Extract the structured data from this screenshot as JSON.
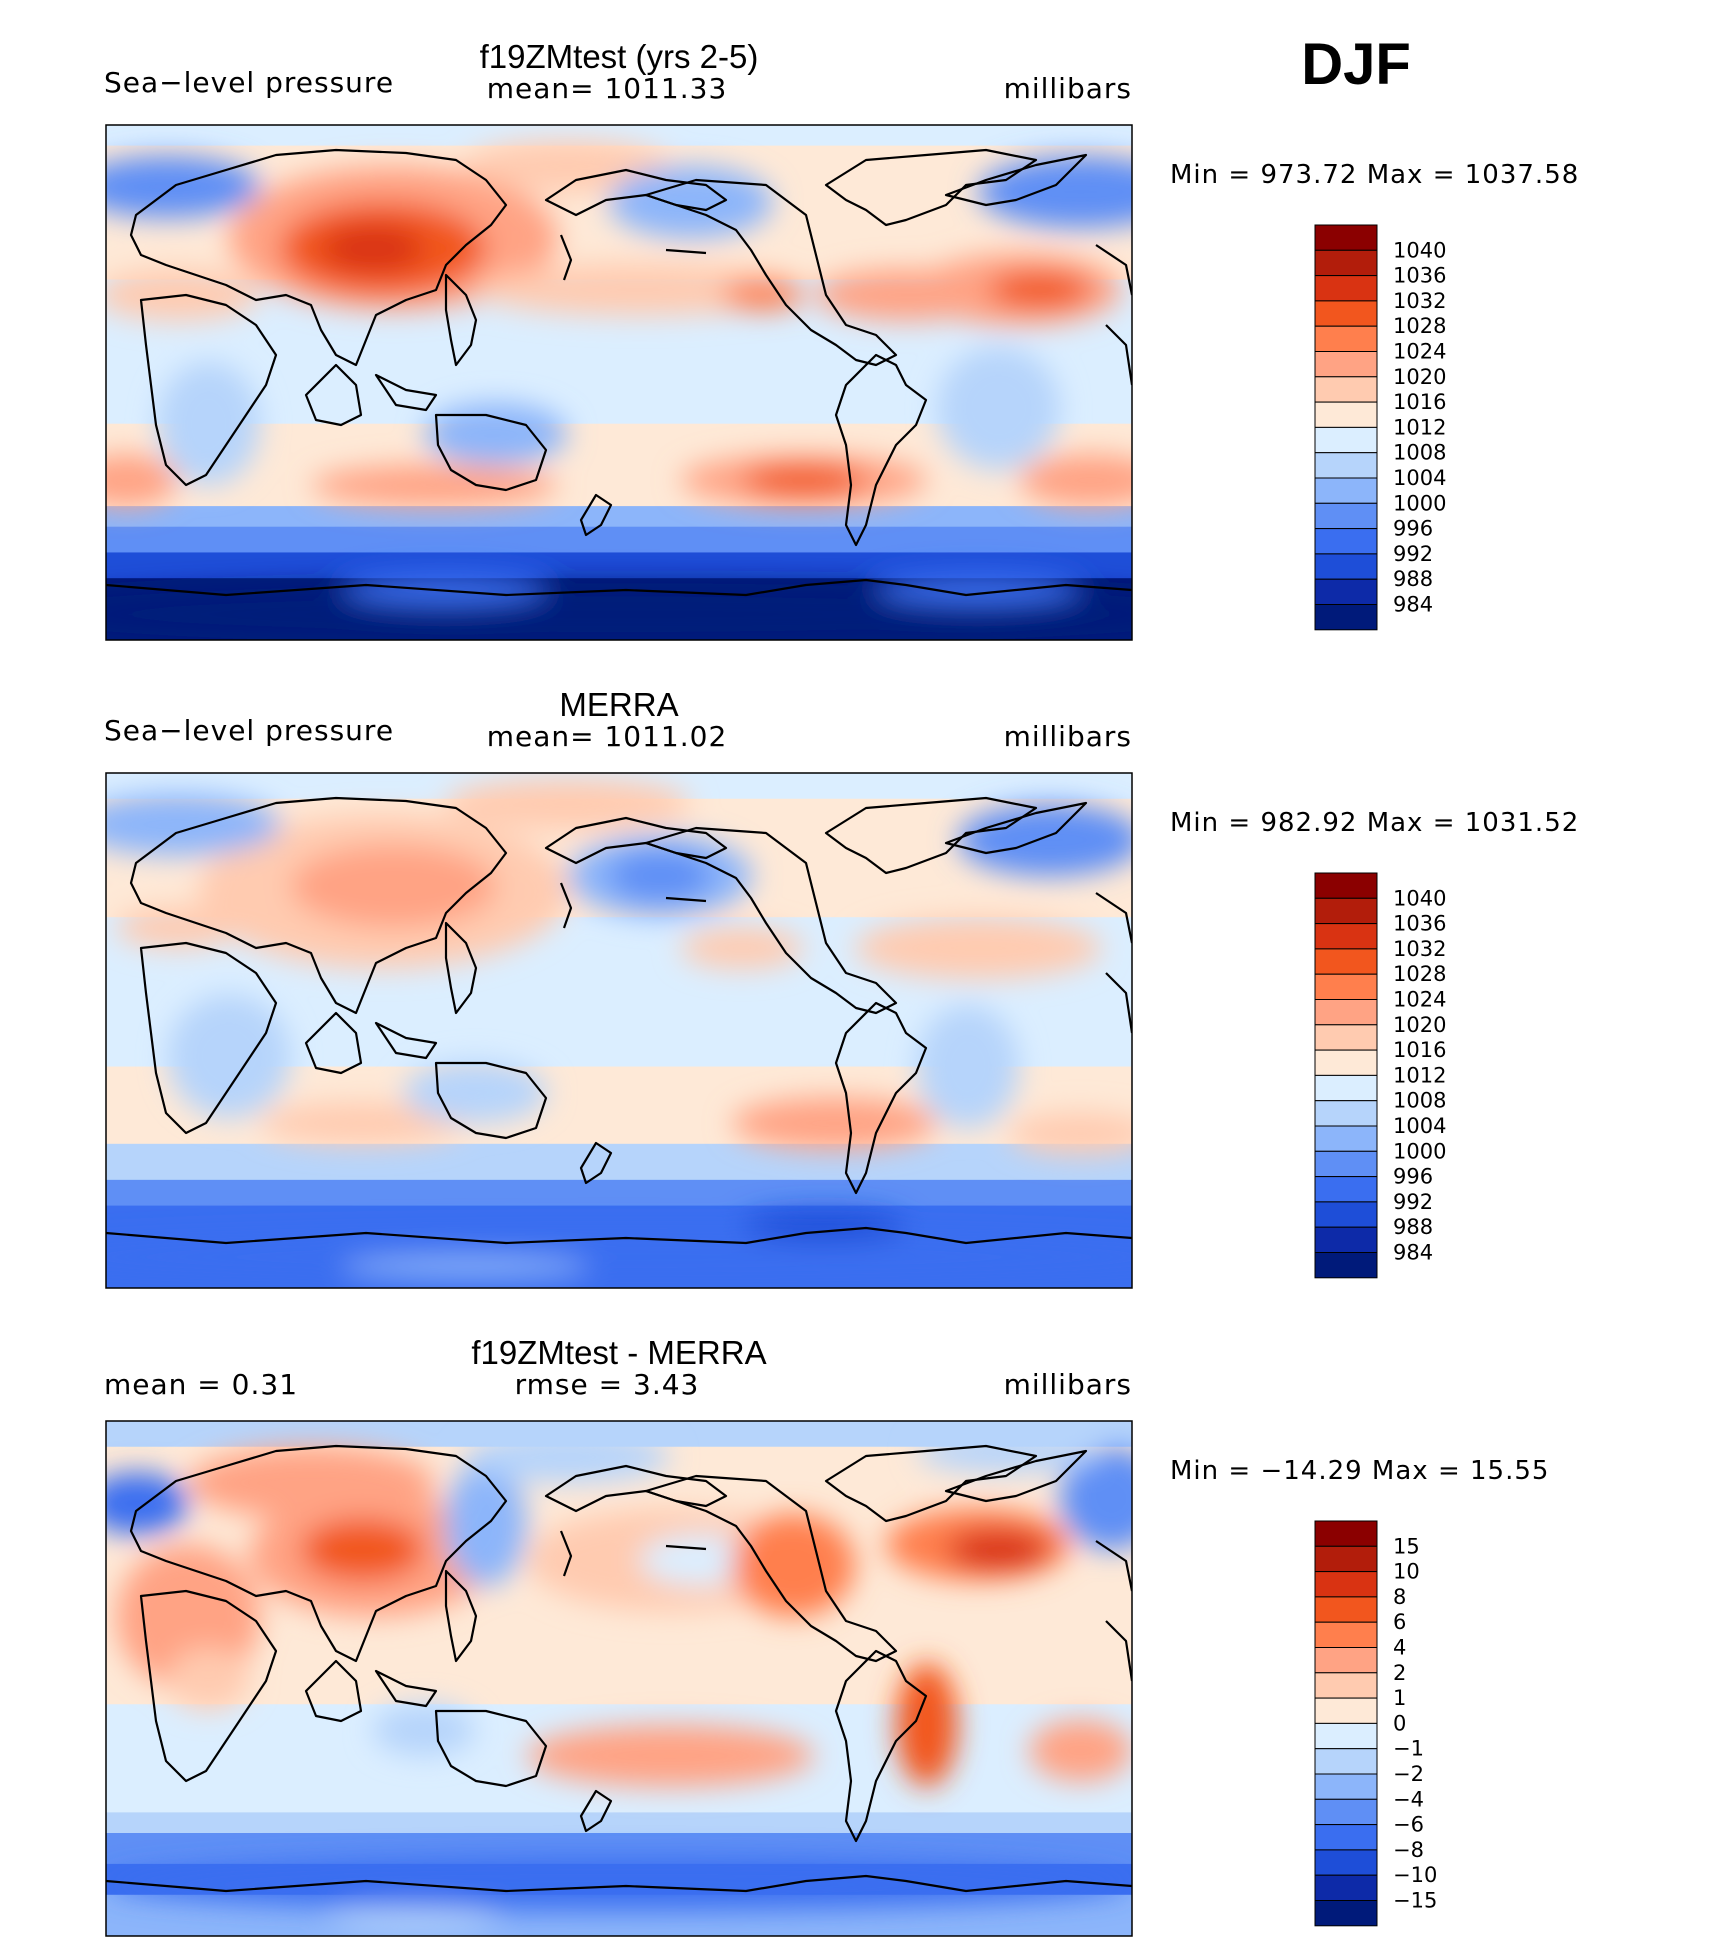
{
  "season": "DJF",
  "chart_data": [
    {
      "type": "contour-map",
      "title": "f19ZMtest (yrs 2-5)",
      "left_label": "Sea−level pressure",
      "center_label": "mean=  1011.33",
      "units": "millibars",
      "stats": "Min  =  973.72  Max  =  1037.58",
      "min": 973.72,
      "max": 1037.58,
      "mean": 1011.33,
      "levels": [
        "1040",
        "1036",
        "1032",
        "1028",
        "1024",
        "1020",
        "1016",
        "1012",
        "1008",
        "1004",
        "1000",
        "996",
        "992",
        "988",
        "984"
      ],
      "colors": [
        "#8b0000",
        "#b21d0b",
        "#d93312",
        "#f2561e",
        "#ff7f4d",
        "#ffa384",
        "#ffcbb0",
        "#fee9d7",
        "#dbeeff",
        "#b6d4fb",
        "#8cb5fa",
        "#5f8ff5",
        "#3a6ef0",
        "#1e4ed8",
        "#0d2aa8",
        "#001a7a"
      ],
      "variant": "model"
    },
    {
      "type": "contour-map",
      "title": "MERRA",
      "left_label": "Sea−level pressure",
      "center_label": "mean=  1011.02",
      "units": "millibars",
      "stats": "Min  =  982.92  Max  =  1031.52",
      "min": 982.92,
      "max": 1031.52,
      "mean": 1011.02,
      "levels": [
        "1040",
        "1036",
        "1032",
        "1028",
        "1024",
        "1020",
        "1016",
        "1012",
        "1008",
        "1004",
        "1000",
        "996",
        "992",
        "988",
        "984"
      ],
      "colors": [
        "#8b0000",
        "#b21d0b",
        "#d93312",
        "#f2561e",
        "#ff7f4d",
        "#ffa384",
        "#ffcbb0",
        "#fee9d7",
        "#dbeeff",
        "#b6d4fb",
        "#8cb5fa",
        "#5f8ff5",
        "#3a6ef0",
        "#1e4ed8",
        "#0d2aa8",
        "#001a7a"
      ],
      "variant": "obs"
    },
    {
      "type": "contour-map",
      "title": "f19ZMtest - MERRA",
      "left_label": "mean  =     0.31",
      "center_label": "rmse  =     3.43",
      "units": "millibars",
      "stats": "Min  =  −14.29  Max  =     15.55",
      "min": -14.29,
      "max": 15.55,
      "mean": 0.31,
      "rmse": 3.43,
      "levels": [
        "15",
        "10",
        "8",
        "6",
        "4",
        "2",
        "1",
        "0",
        "−1",
        "−2",
        "−4",
        "−6",
        "−8",
        "−10",
        "−15"
      ],
      "colors": [
        "#8b0000",
        "#b21d0b",
        "#d93312",
        "#f2561e",
        "#ff7f4d",
        "#ffa384",
        "#ffcbb0",
        "#fee9d7",
        "#dbeeff",
        "#b6d4fb",
        "#8cb5fa",
        "#5f8ff5",
        "#3a6ef0",
        "#1e4ed8",
        "#0d2aa8",
        "#001a7a"
      ],
      "variant": "diff"
    }
  ]
}
